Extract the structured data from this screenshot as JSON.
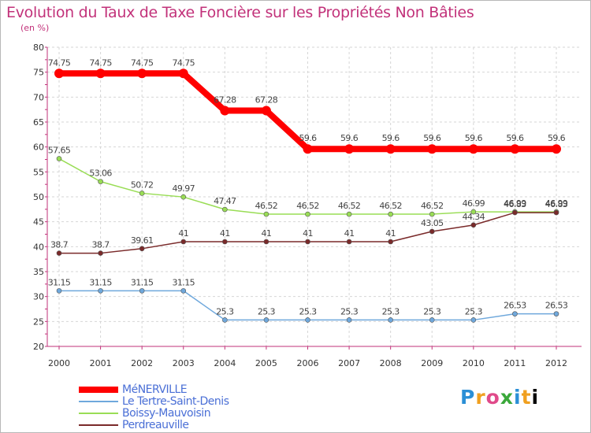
{
  "page": {
    "title": "Evolution du Taux de Taxe Foncière sur les Propriétés Non Bâties",
    "unit": "(en %)",
    "logo": "Proxiti"
  },
  "chart_data": {
    "type": "line",
    "title": "Evolution du Taux de Taxe Foncière sur les Propriétés Non Bâties",
    "ylabel": "(en %)",
    "xlabel": "",
    "ylim": [
      20,
      80
    ],
    "yticks": [
      20,
      25,
      30,
      35,
      40,
      45,
      50,
      55,
      60,
      65,
      70,
      75,
      80
    ],
    "x": [
      "2000",
      "2001",
      "2002",
      "2003",
      "2004",
      "2005",
      "2006",
      "2007",
      "2008",
      "2009",
      "2010",
      "2011",
      "2012"
    ],
    "grid": true,
    "legend": "bottom-left",
    "series": [
      {
        "name": "MéNERVILLE",
        "color": "#ff0000",
        "values": [
          74.75,
          74.75,
          74.75,
          74.75,
          67.28,
          67.28,
          59.6,
          59.6,
          59.6,
          59.6,
          59.6,
          59.6,
          59.6
        ],
        "labels": [
          "74.75",
          "74.75",
          "74.75",
          "74.75",
          "67.28",
          "67.28",
          "59.6",
          "59.6",
          "59.6",
          "59.6",
          "59.6",
          "59.6",
          "59.6"
        ]
      },
      {
        "name": "Le Tertre-Saint-Denis",
        "color": "#6fa8dc",
        "values": [
          31.15,
          31.15,
          31.15,
          31.15,
          25.3,
          25.3,
          25.3,
          25.3,
          25.3,
          25.3,
          25.3,
          26.53,
          26.53
        ],
        "labels": [
          "31.15",
          "31.15",
          "31.15",
          "31.15",
          "25.3",
          "25.3",
          "25.3",
          "25.3",
          "25.3",
          "25.3",
          "25.3",
          "26.53",
          "26.53"
        ]
      },
      {
        "name": "Boissy-Mauvoisin",
        "color": "#99dd55",
        "values": [
          57.65,
          53.06,
          50.72,
          49.97,
          47.47,
          46.52,
          46.52,
          46.52,
          46.52,
          46.52,
          46.99,
          46.99,
          46.99
        ],
        "labels": [
          "57.65",
          "53.06",
          "50.72",
          "49.97",
          "47.47",
          "46.52",
          "46.52",
          "46.52",
          "46.52",
          "46.52",
          "46.99",
          "46.99",
          "46.99"
        ]
      },
      {
        "name": "Perdreauville",
        "color": "#7a2a2a",
        "values": [
          38.7,
          38.7,
          39.61,
          41,
          41,
          41,
          41,
          41,
          41,
          43.05,
          44.34,
          46.83,
          46.83
        ],
        "labels": [
          "38.7",
          "38.7",
          "39.61",
          "41",
          "41",
          "41",
          "41",
          "41",
          "41",
          "43.05",
          "44.34",
          "46.83",
          "46.83"
        ]
      }
    ]
  }
}
